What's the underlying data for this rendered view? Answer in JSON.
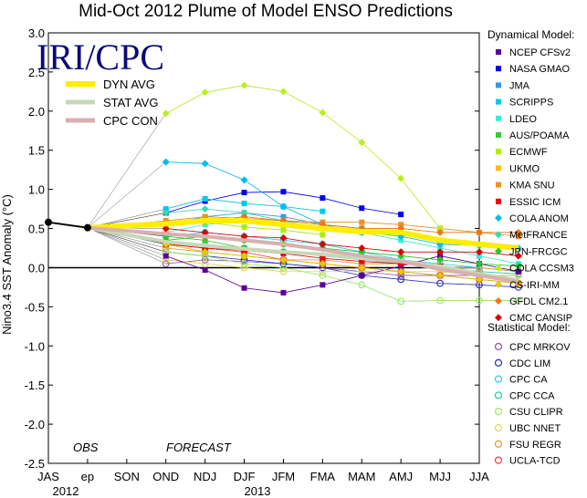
{
  "chart_data": {
    "type": "line",
    "title": "Mid-Oct 2012 Plume of Model ENSO Predictions",
    "ylabel": "Nino3.4 SST Anomaly (°C)",
    "ylim": [
      -2.5,
      3.0
    ],
    "yticks": [
      "3.0",
      "2.5",
      "2.0",
      "1.5",
      "1.0",
      "0.5",
      "0.0",
      "-0.5",
      "-1.0",
      "-1.5",
      "-2.0",
      "-2.5"
    ],
    "categories": [
      "JAS",
      "ep",
      "SON",
      "OND",
      "NDJ",
      "DJF",
      "JFM",
      "FMA",
      "MAM",
      "AMJ",
      "MJJ",
      "JJA"
    ],
    "year_labels": [
      "2012",
      "2013"
    ],
    "logo": "IRI/CPC",
    "obs_label": "OBS",
    "forecast_label": "FORECAST",
    "observed": [
      0.58,
      0.51
    ],
    "averages": [
      {
        "name": "DYN AVG",
        "color": "#ffee00",
        "values": [
          0.56,
          0.6,
          0.6,
          0.55,
          0.5,
          0.46,
          0.45,
          0.35,
          0.3,
          0.25
        ]
      },
      {
        "name": "STAT AVG",
        "color": "#c7d8b8",
        "values": [
          0.33,
          0.28,
          0.24,
          0.2,
          0.17,
          0.12,
          0.08,
          0.02,
          -0.08,
          -0.16
        ]
      },
      {
        "name": "CPC CON",
        "color": "#d8b0b0",
        "values": [
          0.43,
          0.4,
          0.35,
          0.3,
          0.23,
          0.15,
          0.08,
          -0.02,
          -0.1,
          -0.18
        ]
      }
    ],
    "dynamical_header": "Dynamical Model:",
    "statistical_header": "Statistical Model:",
    "dynamical": [
      {
        "name": "NCEP CFSv2",
        "color": "#5a009a",
        "marker": "square",
        "values": [
          0.15,
          -0.03,
          -0.26,
          -0.32,
          -0.22,
          -0.1,
          0.02,
          0.15,
          0.05,
          -0.05
        ]
      },
      {
        "name": "NASA GMAO",
        "color": "#0000ee",
        "marker": "square",
        "values": [
          0.7,
          0.85,
          0.96,
          0.97,
          0.89,
          0.76,
          0.68,
          null,
          null,
          null
        ]
      },
      {
        "name": "JMA",
        "color": "#3399ee",
        "marker": "square",
        "values": [
          0.55,
          0.65,
          0.7,
          0.65,
          0.55,
          0.5,
          null,
          null,
          null,
          null
        ]
      },
      {
        "name": "SCRIPPS",
        "color": "#00c8f0",
        "marker": "square",
        "values": [
          0.75,
          0.88,
          0.82,
          0.78,
          0.72,
          null,
          null,
          null,
          null,
          null
        ]
      },
      {
        "name": "LDEO",
        "color": "#33eedd",
        "marker": "square",
        "values": [
          0.45,
          0.55,
          0.6,
          0.55,
          0.5,
          0.45,
          0.35,
          0.25,
          0.15,
          0.05
        ]
      },
      {
        "name": "AUS/POAMA",
        "color": "#33cc33",
        "marker": "square",
        "values": [
          0.4,
          0.35,
          0.25,
          0.2,
          0.15,
          null,
          null,
          null,
          null,
          null
        ]
      },
      {
        "name": "ECMWF",
        "color": "#aaee00",
        "marker": "square",
        "values": [
          0.55,
          0.58,
          0.52,
          0.48,
          0.42,
          null,
          null,
          null,
          null,
          null
        ]
      },
      {
        "name": "UKMO",
        "color": "#ffbb00",
        "marker": "square",
        "values": [
          0.45,
          0.4,
          0.35,
          0.3,
          null,
          null,
          null,
          null,
          null,
          null
        ]
      },
      {
        "name": "KMA SNU",
        "color": "#f09020",
        "marker": "square",
        "values": [
          0.6,
          0.65,
          0.63,
          0.6,
          0.58,
          0.58,
          0.55,
          0.5,
          0.45,
          0.4
        ]
      },
      {
        "name": "ESSIC ICM",
        "color": "#ee0000",
        "marker": "square",
        "values": [
          0.3,
          0.25,
          0.22,
          0.18,
          0.12,
          0.08,
          0.05,
          0.02,
          null,
          null
        ]
      },
      {
        "name": "COLA ANOM",
        "color": "#00bbee",
        "marker": "diamond",
        "values": [
          1.35,
          1.33,
          1.12,
          0.78,
          0.55,
          0.45,
          0.4,
          0.3,
          0.28,
          0.25
        ]
      },
      {
        "name": "MetFRANCE",
        "color": "#33ddaa",
        "marker": "diamond",
        "values": [
          0.7,
          0.75,
          0.7,
          0.6,
          0.5,
          null,
          null,
          null,
          null,
          null
        ]
      },
      {
        "name": "JPN-FRCGC",
        "color": "#22cc22",
        "marker": "diamond",
        "values": [
          0.35,
          0.4,
          0.35,
          0.3,
          0.25,
          0.2,
          0.15,
          0.1,
          0.05,
          0.02
        ]
      },
      {
        "name": "COLA CCSM3",
        "color": "#bbee22",
        "marker": "diamond",
        "values": [
          1.97,
          2.24,
          2.33,
          2.25,
          1.98,
          1.6,
          1.14,
          0.5,
          null,
          null
        ]
      },
      {
        "name": "CS-IRI-MM",
        "color": "#ddcc00",
        "marker": "diamond",
        "values": [
          0.3,
          0.2,
          0.15,
          0.1,
          0.05,
          0.0,
          -0.05,
          -0.1,
          -0.15,
          -0.2
        ]
      },
      {
        "name": "GFDL CM2.1",
        "color": "#ee7711",
        "marker": "diamond",
        "values": [
          0.55,
          0.6,
          0.65,
          0.6,
          0.55,
          0.5,
          0.5,
          0.45,
          0.45,
          0.45
        ]
      },
      {
        "name": "CMC CANSIP",
        "color": "#dd0000",
        "marker": "diamond",
        "values": [
          0.5,
          0.45,
          0.4,
          0.38,
          0.3,
          0.25,
          0.2,
          0.2,
          0.2,
          0.15
        ]
      }
    ],
    "statistical": [
      {
        "name": "CPC MRKOV",
        "color": "#9955aa",
        "marker": "circle",
        "values": [
          0.05,
          0.1,
          0.08,
          0.05,
          0.0,
          -0.05,
          -0.1,
          -0.1,
          -0.1,
          -0.1
        ]
      },
      {
        "name": "CDC LIM",
        "color": "#3333bb",
        "marker": "circle",
        "values": [
          0.2,
          0.15,
          0.1,
          0.05,
          0.0,
          -0.1,
          -0.15,
          -0.2,
          -0.22,
          -0.25
        ]
      },
      {
        "name": "CPC CA",
        "color": "#33ccee",
        "marker": "circle",
        "values": [
          0.4,
          0.45,
          0.4,
          0.35,
          0.3,
          0.2,
          0.1,
          0.05,
          0.0,
          -0.05
        ]
      },
      {
        "name": "CPC CCA",
        "color": "#22ccaa",
        "marker": "circle",
        "values": [
          0.3,
          0.28,
          0.25,
          0.2,
          0.15,
          0.1,
          0.05,
          0.0,
          -0.05,
          -0.08
        ]
      },
      {
        "name": "CSU CLIPR",
        "color": "#99ee66",
        "marker": "circle",
        "values": [
          0.2,
          0.15,
          0.05,
          0.0,
          -0.1,
          -0.22,
          -0.43,
          -0.42,
          -0.42,
          -0.42
        ]
      },
      {
        "name": "UBC NNET",
        "color": "#dddd55",
        "marker": "circle",
        "values": [
          0.1,
          0.05,
          0.0,
          -0.05,
          -0.05,
          -0.05,
          -0.05,
          -0.05,
          -0.1,
          -0.1
        ]
      },
      {
        "name": "FSU REGR",
        "color": "#ee9933",
        "marker": "circle",
        "values": [
          0.25,
          0.2,
          0.15,
          0.1,
          0.1,
          0.05,
          0.05,
          0.0,
          0.0,
          -0.05
        ]
      },
      {
        "name": "UCLA-TCD",
        "color": "#ee4444",
        "marker": "circle",
        "values": [
          0.3,
          0.25,
          0.2,
          0.1,
          0.05,
          0.0,
          -0.05,
          -0.1,
          -0.15,
          -0.2
        ]
      }
    ]
  }
}
